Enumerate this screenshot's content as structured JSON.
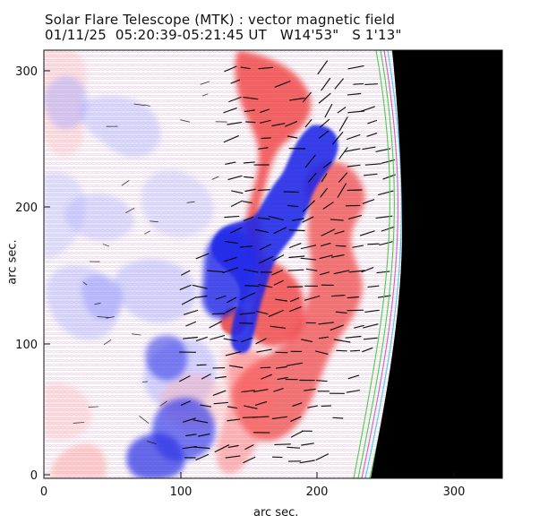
{
  "title": "Solar Flare Telescope (MTK) : vector magnetic field",
  "subtitle": {
    "date": "01/11/25",
    "time_range": "05:20:39-05:21:45 UT",
    "longitude": "W14'53\"",
    "latitude": "S 1'13\""
  },
  "axes": {
    "xlabel": "arc sec.",
    "ylabel": "arc sec.",
    "xlim": [
      0,
      335
    ],
    "ylim": [
      0,
      315
    ],
    "x_ticks": [
      0,
      100,
      200,
      300
    ],
    "y_ticks": [
      0,
      100,
      200,
      300
    ]
  },
  "colors": {
    "positive_field": "#e72323",
    "negative_field": "#2028e8",
    "background_red": "#ffe6e6",
    "background_blue": "#e8e8ff",
    "limb_mask": "#000000",
    "vector": "#000000",
    "limb_band_1": "#45c845",
    "limb_band_2": "#c85ac8",
    "limb_band_3": "#4ec6e6"
  },
  "limb": {
    "note": "Black area beyond the solar limb on the right side"
  },
  "vectors": {
    "description": "Transverse magnetic field vectors shown as short black strokes"
  }
}
